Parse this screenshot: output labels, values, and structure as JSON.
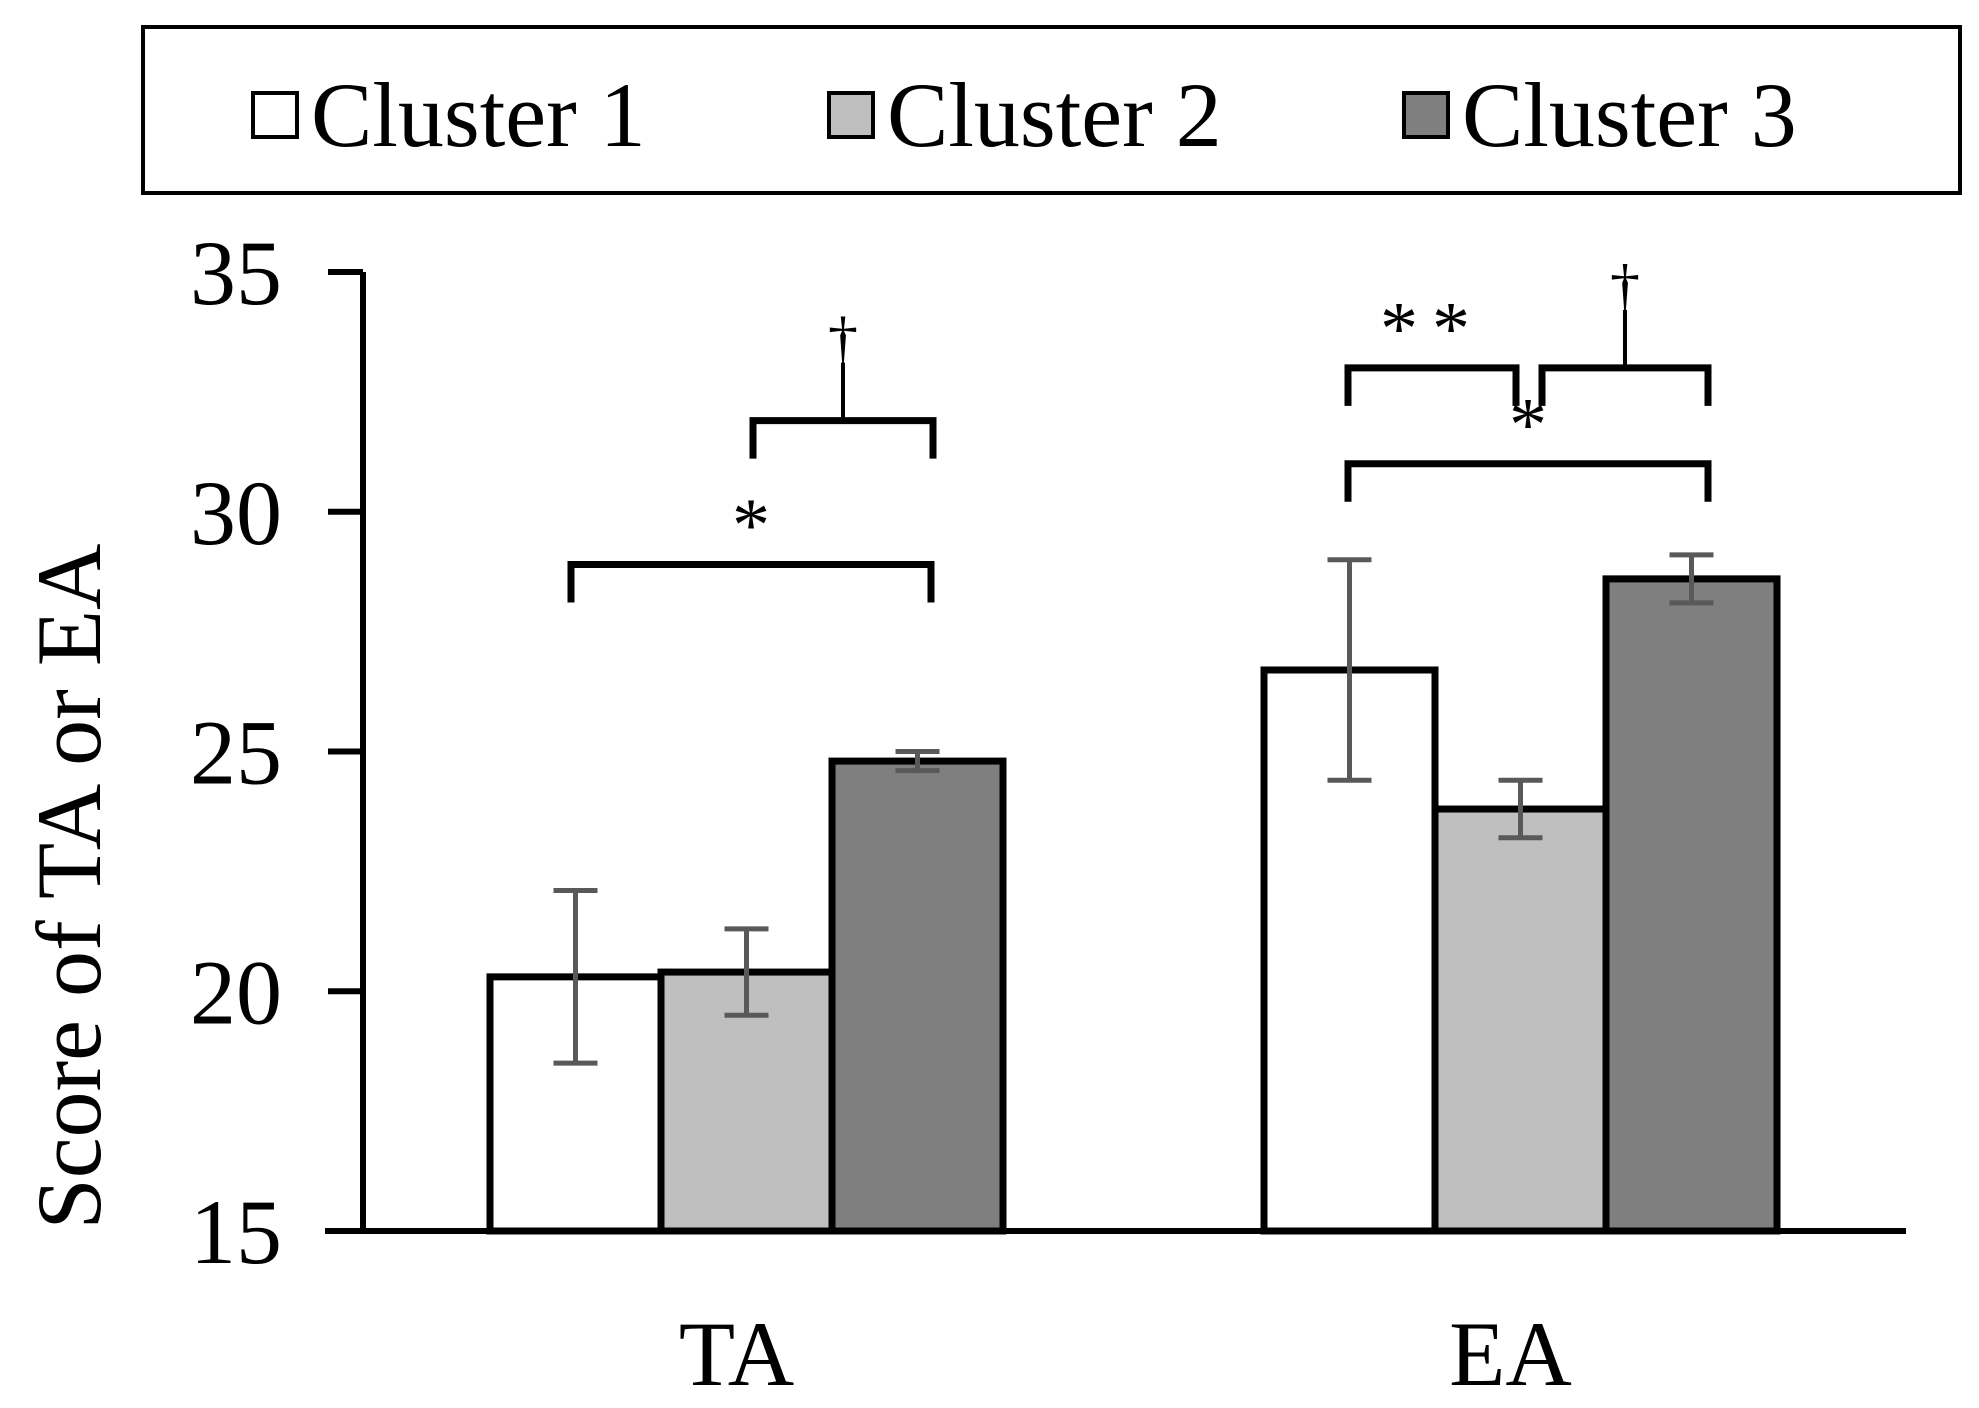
{
  "chart_data": {
    "type": "bar",
    "title": "",
    "xlabel": "",
    "ylabel": "Score of TA or EA",
    "categories": [
      "TA",
      "EA"
    ],
    "ylim": [
      15,
      35
    ],
    "yticks": [
      15,
      20,
      25,
      30,
      35
    ],
    "grid": false,
    "legend_position": "top",
    "series": [
      {
        "name": "Cluster 1",
        "color": "#ffffff",
        "values": [
          20.3,
          26.7
        ],
        "errors": [
          1.8,
          2.3
        ]
      },
      {
        "name": "Cluster 2",
        "color": "#bfbfbf",
        "values": [
          20.4,
          23.8
        ],
        "errors": [
          0.9,
          0.6
        ]
      },
      {
        "name": "Cluster 3",
        "color": "#7f7f7f",
        "values": [
          24.8,
          28.6
        ],
        "errors": [
          0.2,
          0.5
        ]
      }
    ],
    "annotations": [
      {
        "category": "TA",
        "from_series": 0,
        "to_series": 2,
        "label": "*",
        "level": 28.9
      },
      {
        "category": "TA",
        "from_series": 1,
        "to_series": 2,
        "label": "†",
        "level": 31.9
      },
      {
        "category": "EA",
        "from_series": 0,
        "to_series": 2,
        "label": "*",
        "level": 31.0
      },
      {
        "category": "EA",
        "from_series": 0,
        "to_series": 1,
        "label": "**",
        "level": 33.0
      },
      {
        "category": "EA",
        "from_series": 1,
        "to_series": 2,
        "label": "†",
        "level": 33.0
      }
    ]
  }
}
